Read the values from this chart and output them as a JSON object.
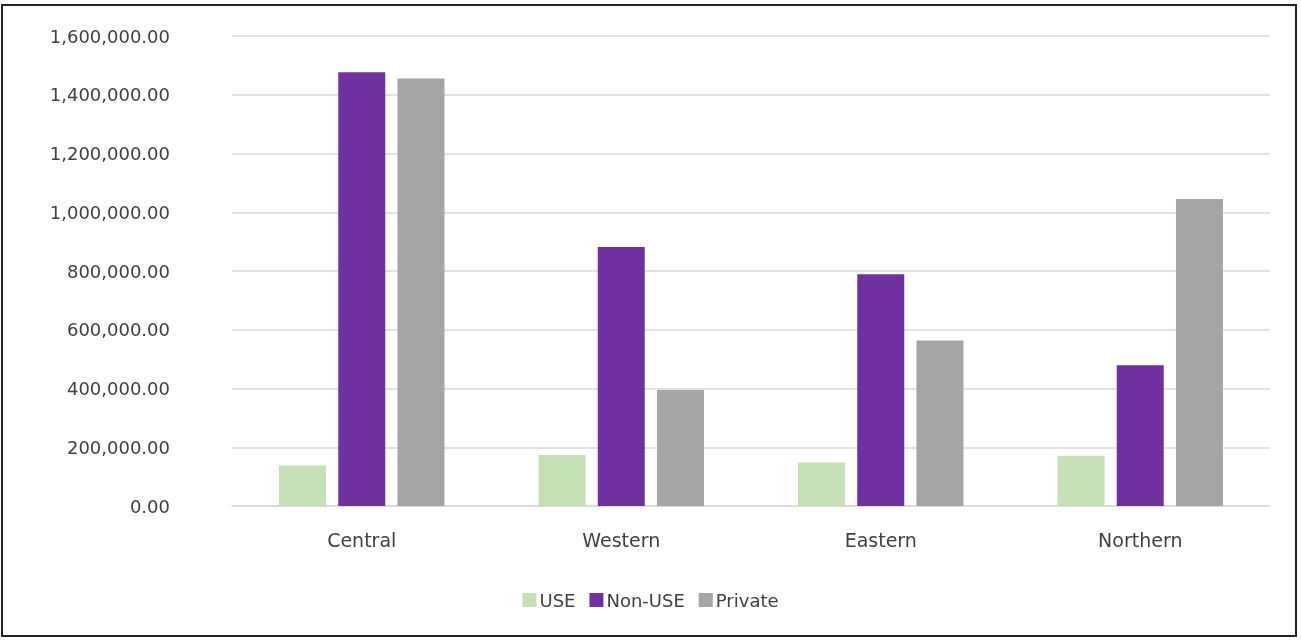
{
  "chart_data": {
    "type": "bar",
    "categories": [
      "Central",
      "Western",
      "Eastern",
      "Northern"
    ],
    "series": [
      {
        "name": "USE",
        "color": "#c5e0b4",
        "values": [
          138000,
          174000,
          148000,
          171000
        ]
      },
      {
        "name": "Non-USE",
        "color": "#7030a0",
        "values": [
          1477000,
          882000,
          789000,
          479000
        ]
      },
      {
        "name": "Private",
        "color": "#a5a5a5",
        "values": [
          1455000,
          395000,
          563000,
          1045000
        ]
      }
    ],
    "ylim": [
      0,
      1600000
    ],
    "yticks": [
      {
        "value": 0,
        "label": "0.00"
      },
      {
        "value": 200000,
        "label": "200,000.00"
      },
      {
        "value": 400000,
        "label": "400,000.00"
      },
      {
        "value": 600000,
        "label": "600,000.00"
      },
      {
        "value": 800000,
        "label": "800,000.00"
      },
      {
        "value": 1000000,
        "label": "1,000,000.00"
      },
      {
        "value": 1200000,
        "label": "1,200,000.00"
      },
      {
        "value": 1400000,
        "label": "1,400,000.00"
      },
      {
        "value": 1600000,
        "label": "1,600,000.00"
      }
    ],
    "grid": "y",
    "legend": "bottom"
  }
}
